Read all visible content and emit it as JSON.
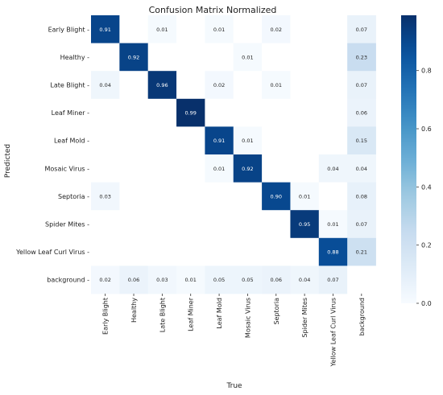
{
  "chart_data": {
    "type": "heatmap",
    "title": "Confusion Matrix Normalized",
    "xlabel": "True",
    "ylabel": "Predicted",
    "x_categories": [
      "Early Blight",
      "Healthy",
      "Late Blight",
      "Leaf Miner",
      "Leaf Mold",
      "Mosaic Virus",
      "Septoria",
      "Spider Mites",
      "Yellow Leaf Curl Virus",
      "background"
    ],
    "y_categories": [
      "Early Blight",
      "Healthy",
      "Late Blight",
      "Leaf Miner",
      "Leaf Mold",
      "Mosaic Virus",
      "Septoria",
      "Spider Mites",
      "Yellow Leaf Curl Virus",
      "background"
    ],
    "values": [
      [
        0.91,
        null,
        0.01,
        null,
        0.01,
        null,
        0.02,
        null,
        null,
        0.07
      ],
      [
        null,
        0.92,
        null,
        null,
        null,
        0.01,
        null,
        null,
        null,
        0.23
      ],
      [
        0.04,
        null,
        0.96,
        null,
        0.02,
        null,
        0.01,
        null,
        null,
        0.07
      ],
      [
        null,
        null,
        null,
        0.99,
        null,
        null,
        null,
        null,
        null,
        0.06
      ],
      [
        null,
        null,
        null,
        null,
        0.91,
        0.01,
        null,
        null,
        null,
        0.15
      ],
      [
        null,
        null,
        null,
        null,
        0.01,
        0.92,
        null,
        null,
        0.04,
        0.04
      ],
      [
        0.03,
        null,
        null,
        null,
        null,
        null,
        0.9,
        0.01,
        null,
        0.08
      ],
      [
        null,
        null,
        null,
        null,
        null,
        null,
        null,
        0.95,
        0.01,
        0.07
      ],
      [
        null,
        null,
        null,
        null,
        null,
        null,
        null,
        null,
        0.88,
        0.21
      ],
      [
        0.02,
        0.06,
        0.03,
        0.01,
        0.05,
        0.05,
        0.06,
        0.04,
        0.07,
        null
      ]
    ],
    "colorbar": {
      "range": [
        0.0,
        0.99
      ],
      "ticks": [
        0.0,
        0.2,
        0.4,
        0.6,
        0.8
      ],
      "tick_labels": [
        "0.0",
        "0.2",
        "0.4",
        "0.6",
        "0.8"
      ],
      "colormap": "Blues"
    },
    "grid": false
  }
}
